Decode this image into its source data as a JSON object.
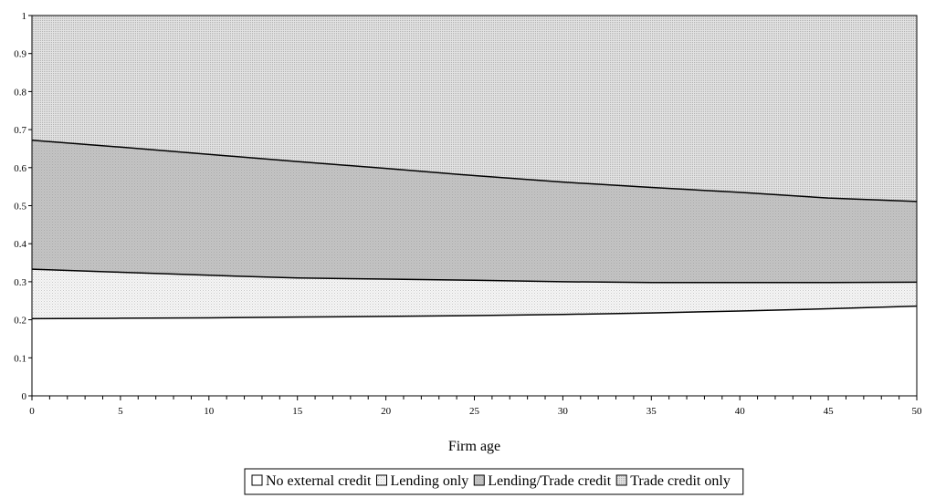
{
  "chart_data": {
    "type": "area",
    "stacked": true,
    "title": "",
    "xlabel": "Firm age",
    "ylabel": "",
    "xlim": [
      0,
      50
    ],
    "ylim": [
      0,
      1
    ],
    "x_ticks": [
      "0",
      "5",
      "10",
      "15",
      "20",
      "25",
      "30",
      "35",
      "40",
      "45",
      "50"
    ],
    "y_ticks": [
      "0",
      "0.1",
      "0.2",
      "0.3",
      "0.4",
      "0.5",
      "0.6",
      "0.7",
      "0.8",
      "0.9",
      "1"
    ],
    "x": [
      0,
      5,
      10,
      15,
      20,
      25,
      30,
      35,
      40,
      45,
      50
    ],
    "series": [
      {
        "name": "No external credit",
        "pattern": "white",
        "values": [
          0.203,
          0.204,
          0.205,
          0.207,
          0.209,
          0.211,
          0.214,
          0.218,
          0.223,
          0.229,
          0.236
        ]
      },
      {
        "name": "Lending only",
        "pattern": "light-dots",
        "values": [
          0.13,
          0.121,
          0.112,
          0.103,
          0.098,
          0.093,
          0.086,
          0.08,
          0.075,
          0.069,
          0.063
        ]
      },
      {
        "name": "Lending/Trade credit",
        "pattern": "medium-gray",
        "values": [
          0.339,
          0.329,
          0.318,
          0.306,
          0.291,
          0.275,
          0.262,
          0.25,
          0.237,
          0.222,
          0.212
        ]
      },
      {
        "name": "Trade credit only",
        "pattern": "fine-dots",
        "values": [
          0.328,
          0.346,
          0.365,
          0.384,
          0.402,
          0.421,
          0.438,
          0.452,
          0.465,
          0.48,
          0.489
        ]
      }
    ],
    "grid": false,
    "legend_position": "bottom"
  }
}
